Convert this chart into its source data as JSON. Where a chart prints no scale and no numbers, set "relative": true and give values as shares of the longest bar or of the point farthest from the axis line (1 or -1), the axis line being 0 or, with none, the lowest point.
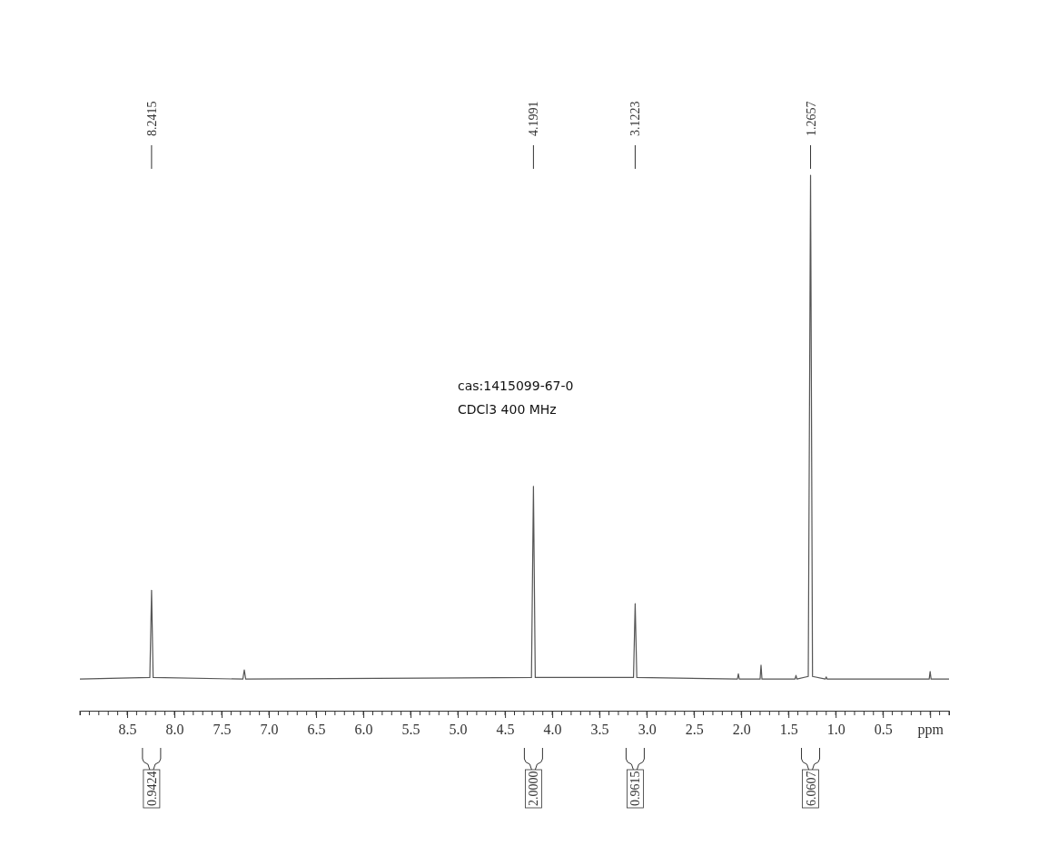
{
  "chart_data": {
    "type": "line",
    "relative": true,
    "xlim": [
      9.0,
      -0.2
    ],
    "xticks": [
      8.5,
      {
        "value": 8.0,
        "label": "8.0"
      },
      7.5,
      {
        "value": 7.0,
        "label": "7.0"
      },
      6.5,
      {
        "value": 6.0,
        "label": "6.0"
      },
      5.5,
      {
        "value": 5.0,
        "label": "5.0"
      },
      4.5,
      {
        "value": 4.0,
        "label": "4.0"
      },
      3.5,
      {
        "value": 3.0,
        "label": "3.0"
      },
      2.5,
      {
        "value": 2.0,
        "label": "2.0"
      },
      1.5,
      {
        "value": 1.0,
        "label": "1.0"
      },
      0.5,
      {
        "value": 0.0,
        "label": "ppm"
      }
    ],
    "series": [
      {
        "color": "#555555",
        "x": [
          9.0,
          8.26,
          8.2415,
          8.225,
          7.275,
          7.26,
          7.245,
          4.22,
          4.1991,
          4.18,
          3.14,
          3.1223,
          3.105,
          2.04,
          2.03,
          2.02,
          1.8,
          1.79,
          1.78,
          1.43,
          1.42,
          1.41,
          1.29,
          1.2657,
          1.245,
          1.11,
          1.1,
          1.09,
          0.01,
          0.0,
          -0.01,
          -0.2
        ],
        "values": [
          0.059,
          0.062,
          0.225,
          0.062,
          0.059,
          0.076,
          0.059,
          0.062,
          0.419,
          0.062,
          0.062,
          0.2,
          0.062,
          0.059,
          0.069,
          0.059,
          0.059,
          0.085,
          0.059,
          0.059,
          0.066,
          0.059,
          0.064,
          1,
          0.064,
          0.059,
          0.063,
          0.059,
          0.059,
          0.073,
          0.059,
          0.059
        ]
      }
    ],
    "annotations": [
      "cas:1415099-67-0",
      "CDCl3   400 MHz",
      {
        "text": "8.2415",
        "x": 8.2415
      },
      {
        "text": "4.1991",
        "x": 4.1991
      },
      {
        "text": "3.1223",
        "x": 3.1223
      },
      {
        "text": "1.2657",
        "x": 1.2657
      },
      "0.9424",
      "2.0000",
      "0.9615",
      "6.0607"
    ],
    "grid": false
  }
}
